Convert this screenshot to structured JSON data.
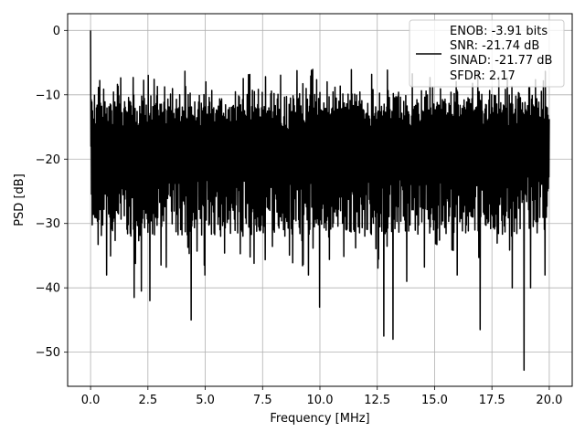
{
  "chart_data": {
    "type": "line",
    "title": "",
    "xlabel": "Frequency [MHz]",
    "ylabel": "PSD [dB]",
    "xlim": [
      -1.0,
      21.0
    ],
    "ylim": [
      -55.3,
      2.6
    ],
    "x_ticks": [
      0.0,
      2.5,
      5.0,
      7.5,
      10.0,
      12.5,
      15.0,
      17.5,
      20.0
    ],
    "x_tick_labels": [
      "0.0",
      "2.5",
      "5.0",
      "7.5",
      "10.0",
      "12.5",
      "15.0",
      "17.5",
      "20.0"
    ],
    "y_ticks": [
      0,
      -10,
      -20,
      -30,
      -40,
      -50
    ],
    "y_tick_labels": [
      "0",
      "−10",
      "−20",
      "−30",
      "−40",
      "−50"
    ],
    "grid": true,
    "legend_position": "top-right",
    "legend_lines": [
      "ENOB: -3.91 bits",
      "SNR: -21.74 dB",
      "SINAD: -21.77 dB",
      "SFDR: 2.17"
    ],
    "line_color": "#000000",
    "series": [
      {
        "x_range": [
          0.0,
          20.0
        ],
        "noise_floor_db": -21.7,
        "noise_band_db": [
          -32,
          -12
        ],
        "upper_peaks_db": [
          -10,
          -6
        ],
        "peak_db": 0.0,
        "peak_freq_mhz": 0.0,
        "deep_dips": [
          {
            "x": 0.7,
            "y": -38
          },
          {
            "x": 1.9,
            "y": -41.5
          },
          {
            "x": 2.2,
            "y": -40.5
          },
          {
            "x": 2.6,
            "y": -42
          },
          {
            "x": 4.4,
            "y": -45
          },
          {
            "x": 5.0,
            "y": -38
          },
          {
            "x": 9.5,
            "y": -38
          },
          {
            "x": 10.0,
            "y": -43
          },
          {
            "x": 12.8,
            "y": -47.5
          },
          {
            "x": 13.2,
            "y": -48
          },
          {
            "x": 13.8,
            "y": -39
          },
          {
            "x": 16.0,
            "y": -38
          },
          {
            "x": 17.0,
            "y": -46.5
          },
          {
            "x": 18.4,
            "y": -40
          },
          {
            "x": 18.9,
            "y": -52.8
          },
          {
            "x": 19.2,
            "y": -40
          },
          {
            "x": 19.8,
            "y": -38
          }
        ]
      }
    ]
  }
}
